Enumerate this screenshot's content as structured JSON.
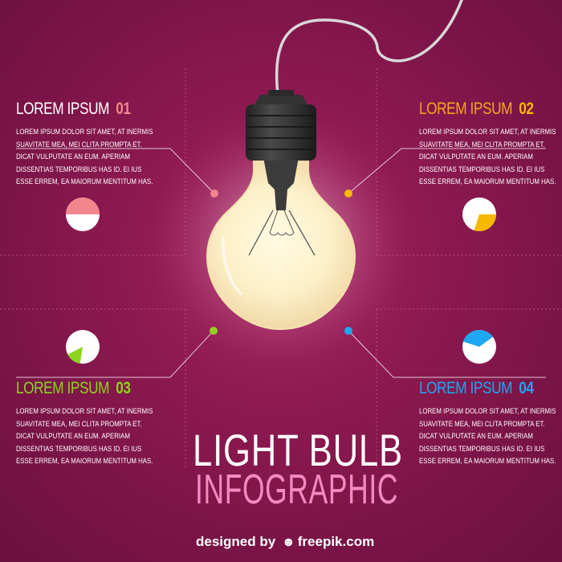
{
  "colors": {
    "background": "#8e1a51",
    "section_01": "#f4858c",
    "section_02": "#f7b800",
    "section_03": "#8ed31f",
    "section_04": "#1ea7f2",
    "subtitle": "#f28ac3"
  },
  "sections": [
    {
      "label": "LOREM IPSUM",
      "number": "01",
      "lines": [
        "LOREM IPSUM DOLOR SIT AMET, AT INERMIS",
        "SUAVITATE MEA, MEI CLITA PROMPTA ET.",
        "DICAT VULPUTATE AN EUM. APERIAM",
        "DISSENTIAS TEMPORIBUS HAS ID. EI IUS",
        "ESSE ERREM, EA MAIORUM MENTITUM HAS."
      ],
      "pie_fraction": 0.5
    },
    {
      "label": "LOREM IPSUM",
      "number": "02",
      "lines": [
        "LOREM IPSUM DOLOR SIT AMET, AT INERMIS",
        "SUAVITATE MEA, MEI CLITA PROMPTA ET.",
        "DICAT VULPUTATE AN EUM. APERIAM",
        "DISSENTIAS TEMPORIBUS HAS ID. EI IUS",
        "ESSE ERREM, EA MAIORUM MENTITUM HAS."
      ],
      "pie_fraction": 0.3
    },
    {
      "label": "LOREM IPSUM",
      "number": "03",
      "lines": [
        "LOREM IPSUM DOLOR SIT AMET, AT INERMIS",
        "SUAVITATE MEA, MEI CLITA PROMPTA ET.",
        "DICAT VULPUTATE AN EUM. APERIAM",
        "DISSENTIAS TEMPORIBUS HAS ID. EI IUS",
        "ESSE ERREM, EA MAIORUM MENTITUM HAS."
      ],
      "pie_fraction": 0.15
    },
    {
      "label": "LOREM IPSUM",
      "number": "04",
      "lines": [
        "LOREM IPSUM DOLOR SIT AMET, AT INERMIS",
        "SUAVITATE MEA, MEI CLITA PROMPTA ET.",
        "DICAT VULPUTATE AN EUM. APERIAM",
        "DISSENTIAS TEMPORIBUS HAS ID. EI IUS",
        "ESSE ERREM, EA MAIORUM MENTITUM HAS."
      ],
      "pie_fraction": 0.35
    }
  ],
  "title": {
    "line1": "LIGHT BULB",
    "line2": "INFOGRAPHIC"
  },
  "credit": {
    "prefix": "designed by",
    "brand": "freepik.com",
    "logo_icon": "freepik-logo-icon"
  },
  "icons": {
    "bulb": "light-bulb-icon"
  }
}
